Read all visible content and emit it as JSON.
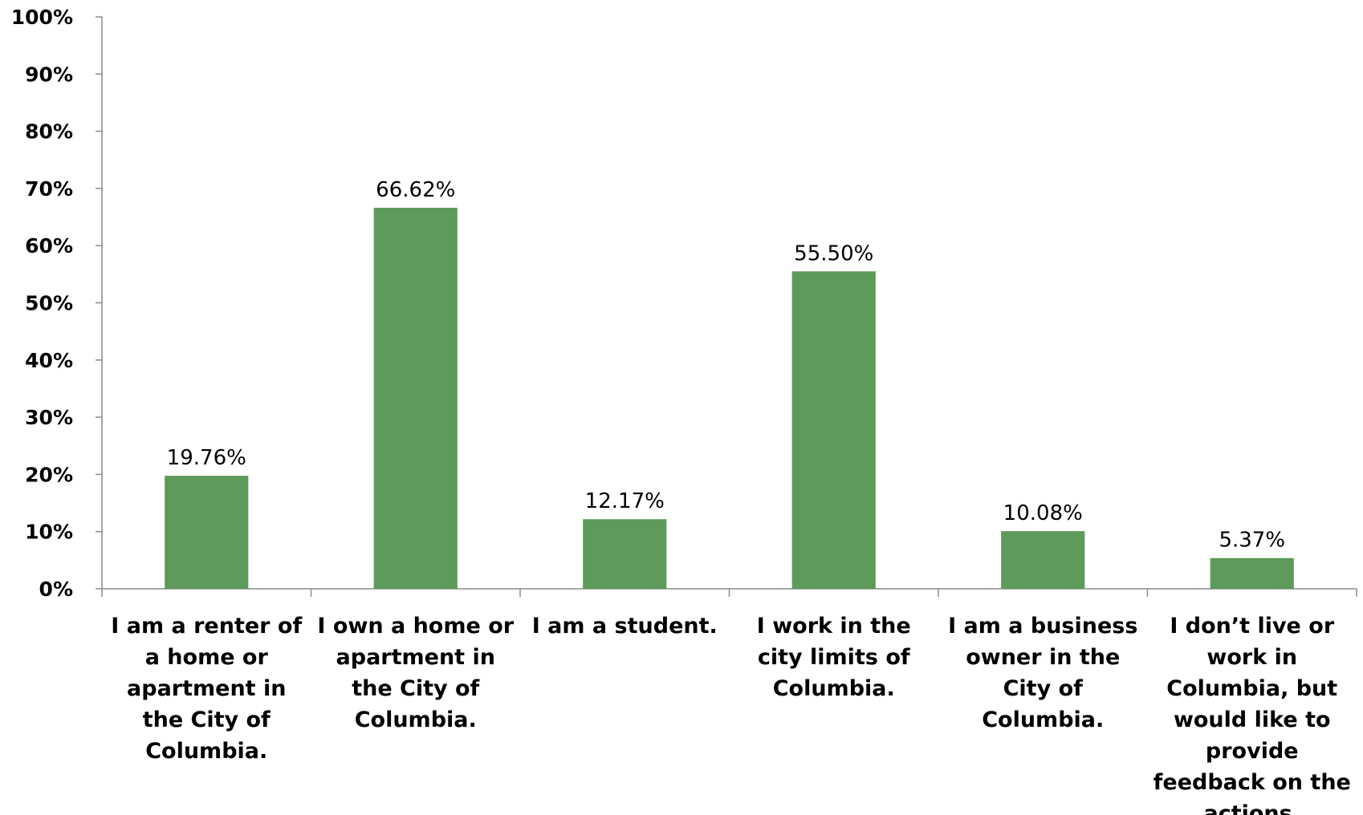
{
  "chart_data": {
    "type": "bar",
    "categories": [
      [
        "I am a renter of",
        "a home or",
        "apartment in",
        "the City of",
        "Columbia."
      ],
      [
        "I own a home or",
        "apartment in",
        "the City of",
        "Columbia."
      ],
      [
        "I am a student."
      ],
      [
        "I work in the",
        "city limits of",
        "Columbia."
      ],
      [
        "I am a business",
        "owner in the",
        "City of",
        "Columbia."
      ],
      [
        "I don’t live or",
        "work in",
        "Columbia, but",
        "would like to",
        "provide",
        "feedback on the",
        "actions."
      ]
    ],
    "values": [
      19.76,
      66.62,
      12.17,
      55.5,
      10.08,
      5.37
    ],
    "data_labels": [
      "19.76%",
      "66.62%",
      "12.17%",
      "55.50%",
      "10.08%",
      "5.37%"
    ],
    "y_ticks": [
      "0%",
      "10%",
      "20%",
      "30%",
      "40%",
      "50%",
      "60%",
      "70%",
      "80%",
      "90%",
      "100%"
    ],
    "ylim": [
      0,
      100
    ],
    "bar_color": "#5e9a5a",
    "axis_color": "#8c8c8c",
    "grid": false,
    "legend": "none"
  }
}
